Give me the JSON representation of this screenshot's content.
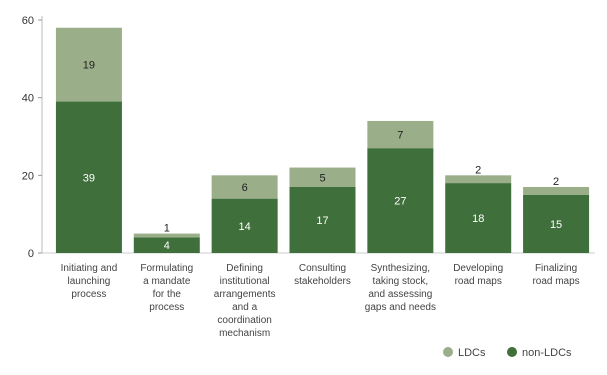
{
  "chart_data": {
    "type": "bar",
    "stacked": true,
    "title": "",
    "xlabel": "",
    "ylabel": "",
    "ylim": [
      0,
      60
    ],
    "yticks": [
      0,
      20,
      40,
      60
    ],
    "grid": false,
    "legend_position": "bottom-right",
    "categories": [
      [
        "Initiating and",
        "launching",
        "process"
      ],
      [
        "Formulating",
        "a mandate",
        "for the",
        "process"
      ],
      [
        "Defining",
        "institutional",
        "arrangements",
        "and a",
        "coordination",
        "mechanism"
      ],
      [
        "Consulting",
        "stakeholders"
      ],
      [
        "Synthesizing,",
        "taking stock,",
        "and assessing",
        "gaps and needs"
      ],
      [
        "Developing",
        "road maps"
      ],
      [
        "Finalizing",
        "road maps"
      ]
    ],
    "series": [
      {
        "name": "non-LDCs",
        "color": "#3f6f3a",
        "values": [
          39,
          4,
          14,
          17,
          27,
          18,
          15
        ]
      },
      {
        "name": "LDCs",
        "color": "#9aae8a",
        "values": [
          19,
          1,
          6,
          5,
          7,
          2,
          2
        ]
      }
    ],
    "legend": [
      {
        "name": "LDCs",
        "color": "#9aae8a"
      },
      {
        "name": "non-LDCs",
        "color": "#3f6f3a"
      }
    ]
  }
}
